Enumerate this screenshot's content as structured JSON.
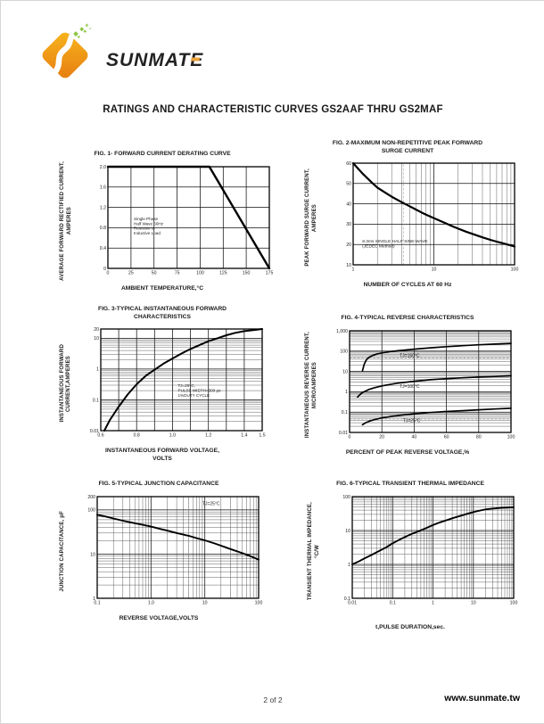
{
  "header": {
    "logo_text": "SUNMATE",
    "title": "RATINGS AND CHARACTERISTIC CURVES GS2AAF THRU GS2MAF",
    "brand_orange": "#ef9418",
    "brand_green": "#8bc53f"
  },
  "footer": {
    "page_number": "2 of 2",
    "website": "www.sunmate.tw"
  },
  "chart_data": [
    {
      "type": "line",
      "title": "FIG. 1- FORWARD CURRENT DERATING CURVE",
      "xlabel": "AMBIENT TEMPERATURE,°C",
      "ylabel_lines": [
        "AVERAGE FORWARD RECTIFIED CURRENT,",
        "AMPERES"
      ],
      "x": {
        "type": "linear",
        "min": 0,
        "max": 175,
        "ticks": [
          {
            "v": 0,
            "label": "0"
          },
          {
            "v": 25,
            "label": "25"
          },
          {
            "v": 50,
            "label": "50"
          },
          {
            "v": 75,
            "label": "75"
          },
          {
            "v": 100,
            "label": "100"
          },
          {
            "v": 125,
            "label": "125"
          },
          {
            "v": 150,
            "label": "150"
          },
          {
            "v": 175,
            "label": "175"
          }
        ]
      },
      "y": {
        "type": "linear",
        "min": 0,
        "max": 2,
        "ticks": [
          {
            "v": 0,
            "label": "0"
          },
          {
            "v": 0.4,
            "label": "0.4"
          },
          {
            "v": 0.8,
            "label": "0.8"
          },
          {
            "v": 1.2,
            "label": "1.2"
          },
          {
            "v": 1.6,
            "label": "1.6"
          },
          {
            "v": 2,
            "label": "2.0"
          }
        ]
      },
      "series": [
        {
          "name": "derating",
          "width": 2.4,
          "points": [
            [
              0,
              2
            ],
            [
              110,
              2
            ],
            [
              175,
              0
            ]
          ]
        }
      ],
      "annotations": [
        {
          "x": 28,
          "y": 0.95,
          "size": 4.6,
          "lines": [
            "Single Phase",
            "Half Wave 60Hz",
            "Resistive or",
            "Inductive Load"
          ]
        }
      ]
    },
    {
      "type": "line",
      "title": "FIG. 2-MAXIMUM NON-REPETITIVE PEAK FORWARD\nSURGE CURRENT",
      "xlabel": "NUMBER OF CYCLES AT 60 Hz",
      "ylabel_lines": [
        "PEAK  FORWARD SURGE CURRENT,",
        "AMPERES"
      ],
      "x": {
        "type": "log",
        "min": 1,
        "max": 100,
        "ticks": [
          {
            "v": 1,
            "label": "1"
          },
          {
            "v": 10,
            "label": "10"
          },
          {
            "v": 100,
            "label": "100"
          }
        ]
      },
      "y": {
        "type": "linear",
        "min": 10,
        "max": 60,
        "ticks": [
          {
            "v": 10,
            "label": "10"
          },
          {
            "v": 20,
            "label": "20"
          },
          {
            "v": 30,
            "label": "30"
          },
          {
            "v": 40,
            "label": "40"
          },
          {
            "v": 50,
            "label": "50"
          },
          {
            "v": 60,
            "label": "60"
          }
        ]
      },
      "dashed_v": [
        4.2
      ],
      "series": [
        {
          "name": "surge",
          "width": 2.2,
          "points": [
            [
              1,
              60
            ],
            [
              1.3,
              55
            ],
            [
              1.7,
              50.5
            ],
            [
              2,
              48
            ],
            [
              2.5,
              45.5
            ],
            [
              3,
              43.5
            ],
            [
              4,
              40.8
            ],
            [
              5,
              38.8
            ],
            [
              6,
              37.2
            ],
            [
              7,
              35.8
            ],
            [
              8,
              34.7
            ],
            [
              10,
              33
            ],
            [
              13,
              31
            ],
            [
              16,
              29.4
            ],
            [
              20,
              27.8
            ],
            [
              25,
              26.3
            ],
            [
              30,
              25.2
            ],
            [
              40,
              23.5
            ],
            [
              50,
              22.3
            ],
            [
              60,
              21.4
            ],
            [
              70,
              20.7
            ],
            [
              85,
              19.8
            ],
            [
              100,
              19
            ]
          ]
        }
      ],
      "annotations": [
        {
          "x": 1.3,
          "y": 21,
          "size": 4.8,
          "lines": [
            "8.3ms SINGLE HALF SINE-WAVE",
            "(JEDEC Method)"
          ]
        }
      ]
    },
    {
      "type": "line",
      "title": "FIG. 3-TYPICAL INSTANTANEOUS FORWARD\nCHARACTERISTICS",
      "xlabel": "INSTANTANEOUS FORWARD VOLTAGE,\nVOLTS",
      "ylabel_lines": [
        "INSTANTANEOUS FORWARD",
        "CURRENT,AMPERES"
      ],
      "x": {
        "type": "linear",
        "min": 0.6,
        "max": 1.5,
        "grid": [
          0.7,
          0.8,
          0.9,
          1.0,
          1.1,
          1.2,
          1.3,
          1.4
        ],
        "ticks": [
          {
            "v": 0.6,
            "label": "0.6"
          },
          {
            "v": 0.8,
            "label": "0.8"
          },
          {
            "v": 1.0,
            "label": "1.0"
          },
          {
            "v": 1.2,
            "label": "1.2"
          },
          {
            "v": 1.4,
            "label": "1.4"
          },
          {
            "v": 1.5,
            "label": "1.5"
          }
        ]
      },
      "y": {
        "type": "log",
        "min": 0.01,
        "max": 20,
        "ticks": [
          {
            "v": 0.01,
            "label": "0.01"
          },
          {
            "v": 0.1,
            "label": "0.1"
          },
          {
            "v": 1,
            "label": "1"
          },
          {
            "v": 10,
            "label": "10"
          },
          {
            "v": 20,
            "label": "20"
          }
        ]
      },
      "series": [
        {
          "name": "forward",
          "width": 2.0,
          "points": [
            [
              0.62,
              0.01
            ],
            [
              0.65,
              0.022
            ],
            [
              0.7,
              0.06
            ],
            [
              0.75,
              0.15
            ],
            [
              0.8,
              0.32
            ],
            [
              0.85,
              0.6
            ],
            [
              0.9,
              0.95
            ],
            [
              0.95,
              1.5
            ],
            [
              1.0,
              2.2
            ],
            [
              1.05,
              3.2
            ],
            [
              1.1,
              4.5
            ],
            [
              1.15,
              6
            ],
            [
              1.2,
              8
            ],
            [
              1.25,
              10
            ],
            [
              1.3,
              12.5
            ],
            [
              1.35,
              15
            ],
            [
              1.4,
              17
            ],
            [
              1.45,
              18.5
            ],
            [
              1.5,
              20
            ]
          ]
        }
      ],
      "annotations": [
        {
          "x": 1.03,
          "y": 0.26,
          "size": 4.6,
          "lines": [
            "TJ=25°C,",
            "PULSE WIDTH=300 μs",
            "1%DUTY CYCLE"
          ]
        }
      ]
    },
    {
      "type": "line",
      "title": "FIG. 4-TYPICAL REVERSE CHARACTERISTICS",
      "xlabel": "PERCENT OF PEAK REVERSE VOLTAGE,%",
      "ylabel_lines": [
        "INSTANTANEOUS REVERSE CURRENT,",
        "MICROAMPERES"
      ],
      "x": {
        "type": "linear",
        "min": 0,
        "max": 100,
        "ticks": [
          {
            "v": 0,
            "label": "0"
          },
          {
            "v": 20,
            "label": "20"
          },
          {
            "v": 40,
            "label": "40"
          },
          {
            "v": 60,
            "label": "60"
          },
          {
            "v": 80,
            "label": "80"
          },
          {
            "v": 100,
            "label": "100"
          }
        ]
      },
      "y": {
        "type": "log",
        "min": 0.01,
        "max": 1000,
        "ticks": [
          {
            "v": 0.01,
            "label": "0.01"
          },
          {
            "v": 0.1,
            "label": "0.1"
          },
          {
            "v": 1,
            "label": "1"
          },
          {
            "v": 10,
            "label": "10"
          },
          {
            "v": 100,
            "label": "100"
          },
          {
            "v": 1000,
            "label": "1,000"
          }
        ]
      },
      "dashed_h": [
        45,
        8,
        3,
        0.045
      ],
      "series": [
        {
          "name": "TJ=150C",
          "width": 1.7,
          "points": [
            [
              8,
              11
            ],
            [
              9,
              22
            ],
            [
              10,
              33
            ],
            [
              11,
              42
            ],
            [
              12,
              50
            ],
            [
              14,
              60
            ],
            [
              16,
              68
            ],
            [
              18,
              75
            ],
            [
              20,
              82
            ],
            [
              25,
              95
            ],
            [
              30,
              105
            ],
            [
              40,
              125
            ],
            [
              50,
              145
            ],
            [
              60,
              165
            ],
            [
              70,
              185
            ],
            [
              80,
              205
            ],
            [
              90,
              222
            ],
            [
              100,
              240
            ]
          ]
        },
        {
          "name": "TJ=100C",
          "width": 1.7,
          "points": [
            [
              5,
              0.55
            ],
            [
              6,
              0.68
            ],
            [
              7,
              0.8
            ],
            [
              8,
              0.92
            ],
            [
              10,
              1.1
            ],
            [
              12,
              1.3
            ],
            [
              15,
              1.55
            ],
            [
              20,
              1.95
            ],
            [
              25,
              2.3
            ],
            [
              30,
              2.65
            ],
            [
              40,
              3.3
            ],
            [
              50,
              3.9
            ],
            [
              60,
              4.4
            ],
            [
              70,
              4.9
            ],
            [
              80,
              5.3
            ],
            [
              90,
              5.7
            ],
            [
              100,
              6.1
            ]
          ]
        },
        {
          "name": "TJ=25C",
          "width": 1.7,
          "points": [
            [
              8,
              0.024
            ],
            [
              10,
              0.03
            ],
            [
              12,
              0.035
            ],
            [
              15,
              0.042
            ],
            [
              20,
              0.052
            ],
            [
              25,
              0.06
            ],
            [
              30,
              0.068
            ],
            [
              40,
              0.082
            ],
            [
              50,
              0.095
            ],
            [
              60,
              0.107
            ],
            [
              70,
              0.118
            ],
            [
              80,
              0.13
            ],
            [
              90,
              0.142
            ],
            [
              100,
              0.155
            ]
          ]
        }
      ],
      "annotations": [
        {
          "x": 31,
          "y": 52,
          "size": 5,
          "lines": [
            "TJ=150°C"
          ]
        },
        {
          "x": 31,
          "y": 1.55,
          "size": 5,
          "lines": [
            "TJ=100°C"
          ]
        },
        {
          "x": 33,
          "y": 0.032,
          "size": 5,
          "lines": [
            "TJ=25°C"
          ]
        }
      ]
    },
    {
      "type": "line",
      "title": "FIG. 5-TYPICAL JUNCTION CAPACITANCE",
      "xlabel": "REVERSE VOLTAGE,VOLTS",
      "ylabel_lines": [
        "JUNCTION CAPACITANCE, pF"
      ],
      "x": {
        "type": "log",
        "min": 0.1,
        "max": 100,
        "ticks": [
          {
            "v": 0.1,
            "label": "0.1"
          },
          {
            "v": 1,
            "label": "1.0"
          },
          {
            "v": 10,
            "label": "10"
          },
          {
            "v": 100,
            "label": "100"
          }
        ]
      },
      "y": {
        "type": "log",
        "min": 1,
        "max": 200,
        "ticks": [
          {
            "v": 1,
            "label": "1"
          },
          {
            "v": 10,
            "label": "10"
          },
          {
            "v": 100,
            "label": "100"
          },
          {
            "v": 200,
            "label": "200"
          }
        ]
      },
      "dashed_v": [
        5,
        30
      ],
      "series": [
        {
          "name": "capacitance",
          "width": 1.9,
          "points": [
            [
              0.1,
              78
            ],
            [
              0.15,
              70
            ],
            [
              0.2,
              64
            ],
            [
              0.3,
              57
            ],
            [
              0.5,
              50
            ],
            [
              0.7,
              46
            ],
            [
              1,
              42
            ],
            [
              1.5,
              37
            ],
            [
              2,
              34
            ],
            [
              3,
              30
            ],
            [
              5,
              26
            ],
            [
              7,
              23
            ],
            [
              10,
              20.5
            ],
            [
              15,
              17.5
            ],
            [
              20,
              15.5
            ],
            [
              30,
              13
            ],
            [
              50,
              10.5
            ],
            [
              70,
              9
            ],
            [
              100,
              7.5
            ]
          ]
        }
      ],
      "annotations": [
        {
          "x": 9,
          "y": 130,
          "size": 5,
          "lines": [
            "TJ=25°C"
          ]
        }
      ]
    },
    {
      "type": "line",
      "title": "FIG. 6-TYPICAL TRANSIENT THERMAL IMPEDANCE",
      "xlabel": "t,PULSE DURATION,sec.",
      "ylabel_lines": [
        "TRANSIENT THERMAL IMPEDANCE,",
        "°C/W"
      ],
      "x": {
        "type": "log",
        "min": 0.01,
        "max": 100,
        "ticks": [
          {
            "v": 0.01,
            "label": "0.01"
          },
          {
            "v": 0.1,
            "label": "0.1"
          },
          {
            "v": 1,
            "label": "1"
          },
          {
            "v": 10,
            "label": "10"
          },
          {
            "v": 100,
            "label": "100"
          }
        ]
      },
      "y": {
        "type": "log",
        "min": 0.1,
        "max": 100,
        "ticks": [
          {
            "v": 0.1,
            "label": "0.1"
          },
          {
            "v": 1,
            "label": "1"
          },
          {
            "v": 10,
            "label": "10"
          },
          {
            "v": 100,
            "label": "100"
          }
        ]
      },
      "dashed_v": [
        0.2
      ],
      "series": [
        {
          "name": "thermal",
          "width": 1.9,
          "points": [
            [
              0.01,
              1
            ],
            [
              0.015,
              1.25
            ],
            [
              0.02,
              1.5
            ],
            [
              0.03,
              1.9
            ],
            [
              0.05,
              2.6
            ],
            [
              0.07,
              3.2
            ],
            [
              0.1,
              4.2
            ],
            [
              0.15,
              5.4
            ],
            [
              0.2,
              6.4
            ],
            [
              0.3,
              8
            ],
            [
              0.5,
              10.2
            ],
            [
              0.7,
              12
            ],
            [
              1,
              14.5
            ],
            [
              1.5,
              17.5
            ],
            [
              2,
              19.5
            ],
            [
              3,
              23
            ],
            [
              5,
              27.5
            ],
            [
              7,
              31
            ],
            [
              10,
              35
            ],
            [
              15,
              39
            ],
            [
              20,
              42
            ],
            [
              30,
              44.5
            ],
            [
              50,
              46.5
            ],
            [
              70,
              47.5
            ],
            [
              100,
              48.5
            ]
          ]
        }
      ],
      "annotations": []
    }
  ]
}
